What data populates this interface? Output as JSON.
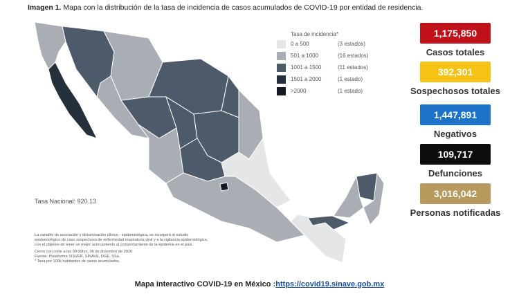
{
  "header": {
    "label": "Imagen 1.",
    "title": "Mapa con la distribución de la tasa de incidencia de casos acumulados de COVID-19 por entidad de residencia."
  },
  "legend": {
    "title": "Tasa de incidencia*",
    "items": [
      {
        "range": "0 a  500",
        "count": "(3 estados)",
        "color": "#e4e6e8"
      },
      {
        "range": "501 a  1000",
        "count": "(16 estados)",
        "color": "#a9aeb4"
      },
      {
        "range": "1001 a  1500",
        "count": "(11 estados)",
        "color": "#4d5a6a"
      },
      {
        "range": "1501 a  2000",
        "count": "(1 estado)",
        "color": "#26303c"
      },
      {
        "range": ">2000",
        "count": "(1 estado)",
        "color": "#141a22"
      }
    ]
  },
  "stats": [
    {
      "value": "1,175,850",
      "label": "Casos totales",
      "color": "#c0111b"
    },
    {
      "value": "392,301",
      "label": "Sospechosos totales",
      "color": "#f5c215"
    },
    {
      "value": "1,447,891",
      "label": "Negativos",
      "color": "#1b72c6"
    },
    {
      "value": "109,717",
      "label": "Defunciones",
      "color": "#0d0d0d"
    },
    {
      "value": "3,016,042",
      "label": "Personas notificadas",
      "color": "#b89a5f"
    }
  ],
  "national_rate": "Tasa Nacional: 920.13",
  "notes": [
    "La variable de asociación y dictaminación clínica - epidemiológica, se incorporó al estudio",
    "epidemiológico de caso sospechoso de enfermedad respiratoria viral y a la vigilancia epidemiológica,",
    "con el objetivo de tener un mejor acercamiento al comportamiento de la epidemia en el país.",
    "Cierre con corte a las 09:00hrs, 06 de diciembre de 2020",
    "Fuente: Plataforma SISVER, SINAVE, DGE, SSa.",
    "* Tasa por 100k habitantes de casos acumulados."
  ],
  "footer": {
    "text": "Mapa interactivo COVID-19 en México :",
    "link": "https://covid19.sinave.gob.mx"
  }
}
